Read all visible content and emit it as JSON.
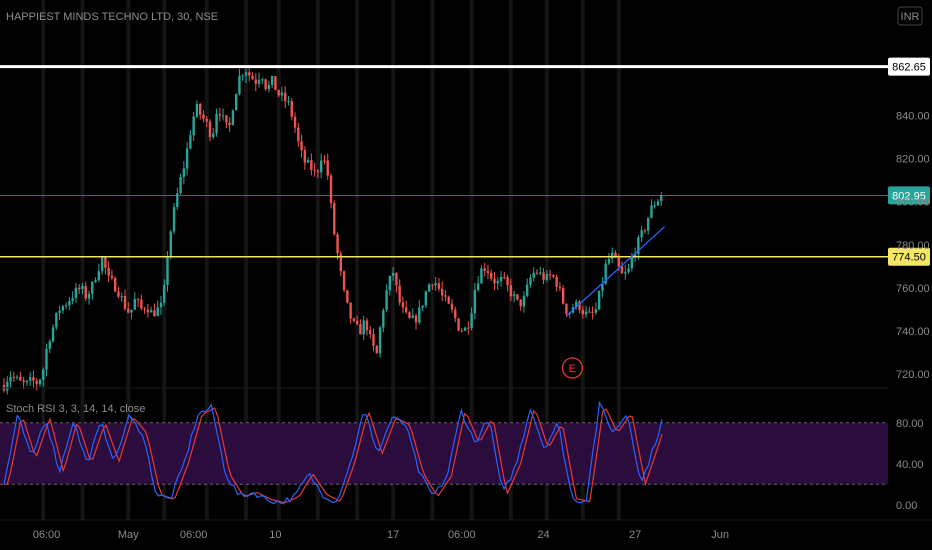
{
  "chart_data": {
    "type": "candlestick",
    "title": "HAPPIEST MINDS TECHNO LTD, 30, NSE",
    "currency_label": "INR",
    "price_axis": {
      "ticks": [
        720.0,
        740.0,
        760.0,
        780.0,
        800.0,
        820.0,
        840.0
      ],
      "range": [
        715,
        875
      ]
    },
    "horizontal_lines": [
      {
        "name": "resistance",
        "value": 862.65,
        "label": "862.65",
        "color": "#ffffff"
      },
      {
        "name": "current-price",
        "value": 802.95,
        "label": "802.95",
        "color": "#26a69a"
      },
      {
        "name": "support",
        "value": 774.5,
        "label": "774.50",
        "color": "#f5e663"
      }
    ],
    "trendline": {
      "from": {
        "bar": 172,
        "price": 747
      },
      "to": {
        "bar": 193,
        "price": 776
      },
      "extend_to_bar": 202,
      "color": "#2962ff"
    },
    "earnings_marker": {
      "label": "E",
      "bar": 172,
      "color": "#e53935"
    },
    "x_axis_labels": [
      {
        "label": "06:00",
        "bar": 13
      },
      {
        "label": "May",
        "bar": 38
      },
      {
        "label": "06:00",
        "bar": 58
      },
      {
        "label": "10",
        "bar": 83
      },
      {
        "label": "17",
        "bar": 119
      },
      {
        "label": "06:00",
        "bar": 140
      },
      {
        "label": "24",
        "bar": 165
      },
      {
        "label": "27",
        "bar": 193
      },
      {
        "label": "Jun",
        "bar": 219
      }
    ],
    "session_breaks": [
      12,
      24,
      38,
      49,
      62,
      74,
      84,
      96,
      108,
      119,
      131,
      143,
      155,
      166,
      177,
      188
    ],
    "price_keypoints": [
      [
        0,
        715
      ],
      [
        1,
        720
      ],
      [
        2,
        718
      ],
      [
        3,
        716
      ],
      [
        4,
        715
      ],
      [
        5,
        717
      ],
      [
        6,
        716
      ],
      [
        7,
        720
      ],
      [
        8,
        735
      ],
      [
        9,
        742
      ],
      [
        10,
        750
      ],
      [
        11,
        752
      ],
      [
        12,
        755
      ],
      [
        13,
        758
      ],
      [
        14,
        760
      ],
      [
        15,
        756
      ],
      [
        16,
        760
      ],
      [
        17,
        768
      ],
      [
        18,
        774
      ],
      [
        19,
        764
      ],
      [
        20,
        762
      ],
      [
        21,
        758
      ],
      [
        22,
        752
      ],
      [
        23,
        748
      ],
      [
        24,
        755
      ],
      [
        25,
        750
      ],
      [
        26,
        752
      ],
      [
        27,
        748
      ],
      [
        28,
        750
      ],
      [
        29,
        752
      ],
      [
        30,
        780
      ],
      [
        31,
        795
      ],
      [
        32,
        808
      ],
      [
        33,
        818
      ],
      [
        34,
        832
      ],
      [
        35,
        844
      ],
      [
        36,
        840
      ],
      [
        37,
        836
      ],
      [
        38,
        830
      ],
      [
        39,
        845
      ],
      [
        40,
        838
      ],
      [
        41,
        832
      ],
      [
        42,
        848
      ],
      [
        43,
        858
      ],
      [
        44,
        862
      ],
      [
        45,
        858
      ],
      [
        46,
        856
      ],
      [
        47,
        860
      ],
      [
        48,
        852
      ],
      [
        49,
        856
      ],
      [
        50,
        850
      ],
      [
        51,
        848
      ],
      [
        52,
        845
      ],
      [
        53,
        836
      ],
      [
        54,
        824
      ],
      [
        55,
        818
      ],
      [
        56,
        816
      ],
      [
        57,
        812
      ],
      [
        58,
        822
      ],
      [
        59,
        815
      ],
      [
        60,
        790
      ],
      [
        61,
        774
      ],
      [
        62,
        758
      ],
      [
        63,
        748
      ],
      [
        64,
        742
      ],
      [
        65,
        740
      ],
      [
        66,
        745
      ],
      [
        67,
        735
      ],
      [
        68,
        728
      ],
      [
        69,
        748
      ],
      [
        70,
        760
      ],
      [
        71,
        768
      ],
      [
        72,
        755
      ],
      [
        73,
        748
      ],
      [
        74,
        745
      ],
      [
        75,
        745
      ],
      [
        76,
        750
      ],
      [
        77,
        758
      ],
      [
        78,
        764
      ],
      [
        79,
        762
      ],
      [
        80,
        756
      ],
      [
        81,
        752
      ],
      [
        82,
        748
      ],
      [
        83,
        742
      ],
      [
        84,
        740
      ],
      [
        85,
        745
      ],
      [
        86,
        760
      ],
      [
        87,
        768
      ],
      [
        88,
        770
      ],
      [
        89,
        765
      ],
      [
        90,
        762
      ],
      [
        91,
        764
      ],
      [
        92,
        760
      ],
      [
        93,
        756
      ],
      [
        94,
        752
      ],
      [
        95,
        755
      ],
      [
        96,
        764
      ],
      [
        97,
        768
      ],
      [
        98,
        766
      ],
      [
        99,
        764
      ],
      [
        100,
        766
      ],
      [
        101,
        762
      ],
      [
        102,
        754
      ],
      [
        103,
        748
      ],
      [
        104,
        752
      ],
      [
        105,
        752
      ],
      [
        106,
        748
      ],
      [
        107,
        747
      ],
      [
        108,
        749
      ],
      [
        109,
        760
      ],
      [
        110,
        772
      ],
      [
        111,
        775
      ],
      [
        112,
        770
      ],
      [
        113,
        765
      ],
      [
        114,
        768
      ],
      [
        115,
        777
      ],
      [
        116,
        782
      ],
      [
        117,
        788
      ],
      [
        118,
        796
      ],
      [
        119,
        800
      ],
      [
        120,
        802.95
      ]
    ],
    "oscillator": {
      "name": "Stoch RSI 3, 3, 14, 14, close",
      "ticks": [
        0.0,
        40.0,
        80.0
      ],
      "range": [
        -10,
        110
      ],
      "band": [
        20,
        80
      ],
      "series": [
        {
          "name": "K",
          "color": "#2962ff"
        },
        {
          "name": "D",
          "color": "#e53935"
        }
      ],
      "keypoints": [
        [
          0,
          20
        ],
        [
          4,
          88
        ],
        [
          8,
          45
        ],
        [
          12,
          85
        ],
        [
          16,
          32
        ],
        [
          20,
          82
        ],
        [
          24,
          40
        ],
        [
          28,
          80
        ],
        [
          32,
          42
        ],
        [
          36,
          86
        ],
        [
          40,
          70
        ],
        [
          44,
          10
        ],
        [
          48,
          5
        ],
        [
          52,
          40
        ],
        [
          56,
          88
        ],
        [
          60,
          95
        ],
        [
          64,
          30
        ],
        [
          68,
          8
        ],
        [
          72,
          12
        ],
        [
          76,
          5
        ],
        [
          80,
          2
        ],
        [
          84,
          8
        ],
        [
          88,
          30
        ],
        [
          92,
          10
        ],
        [
          96,
          3
        ],
        [
          100,
          40
        ],
        [
          104,
          92
        ],
        [
          108,
          50
        ],
        [
          112,
          85
        ],
        [
          116,
          78
        ],
        [
          120,
          30
        ],
        [
          124,
          8
        ],
        [
          128,
          28
        ],
        [
          132,
          92
        ],
        [
          136,
          60
        ],
        [
          140,
          85
        ],
        [
          144,
          10
        ],
        [
          148,
          40
        ],
        [
          152,
          95
        ],
        [
          156,
          55
        ],
        [
          160,
          80
        ],
        [
          164,
          6
        ],
        [
          168,
          3
        ],
        [
          172,
          98
        ],
        [
          176,
          70
        ],
        [
          180,
          90
        ],
        [
          184,
          20
        ],
        [
          188,
          60
        ],
        [
          190,
          82
        ]
      ]
    }
  }
}
